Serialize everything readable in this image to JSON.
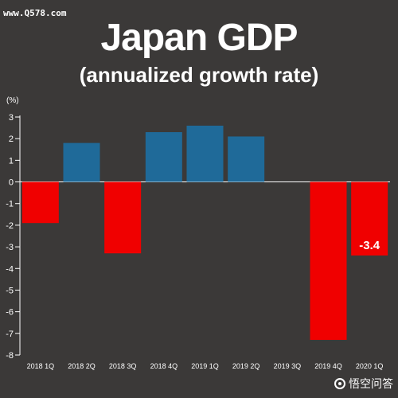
{
  "watermark": "www.Q578.com",
  "title": "Japan GDP",
  "subtitle": "(annualized growth rate)",
  "unit": "(%)",
  "brand": "悟空问答",
  "chart_data": {
    "type": "bar",
    "categories": [
      "2018 1Q",
      "2018 2Q",
      "2018 3Q",
      "2018 4Q",
      "2019 1Q",
      "2019 2Q",
      "2019 3Q",
      "2019 4Q",
      "2020 1Q"
    ],
    "values": [
      -1.9,
      1.8,
      -3.3,
      2.3,
      2.6,
      2.1,
      null,
      -7.3,
      -3.4
    ],
    "ylim": [
      -8,
      3
    ],
    "yticks": [
      3,
      2,
      1,
      0,
      -1,
      -2,
      -3,
      -4,
      -5,
      -6,
      -7,
      -8
    ],
    "annotation": {
      "category": "2020 1Q",
      "text": "-3.4"
    },
    "colors": {
      "positive": "#1f6a99",
      "negative": "#f00000",
      "background": "#3b3938"
    }
  }
}
